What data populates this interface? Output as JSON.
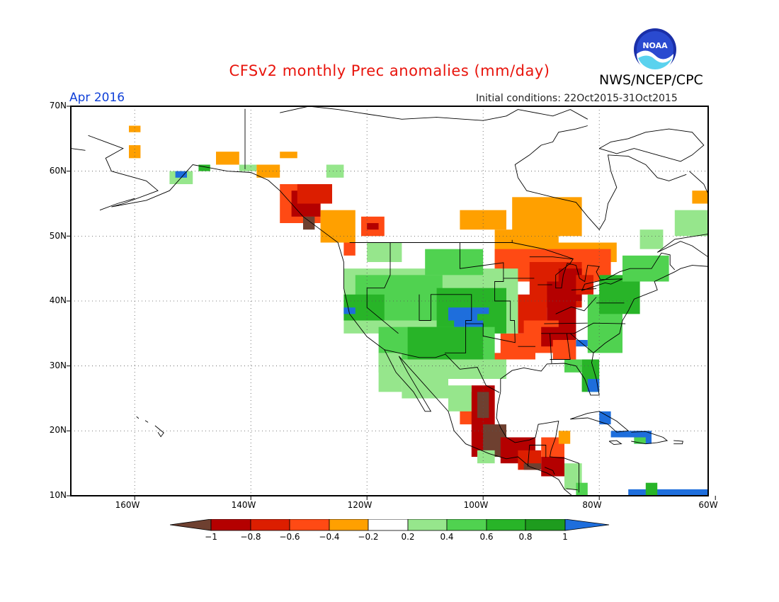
{
  "header": {
    "title": "CFSv2 monthly Prec anomalies (mm/day)",
    "agency": "NWS/NCEP/CPC",
    "logo_text": "NOAA",
    "month": "Apr 2016",
    "initial_conditions": "Initial conditions: 22Oct2015-31Oct2015"
  },
  "map": {
    "lat_labels": [
      "70N",
      "60N",
      "50N",
      "40N",
      "30N",
      "20N",
      "10N"
    ],
    "lon_labels": [
      "160W",
      "140W",
      "120W",
      "100W",
      "80W",
      "60W"
    ]
  },
  "colorbar": {
    "labels": [
      "−1",
      "−0.8",
      "−0.6",
      "−0.4",
      "−0.2",
      "0.2",
      "0.4",
      "0.6",
      "0.8",
      "1"
    ],
    "colors": {
      "lt_-1": "#6e4030",
      "-1_-0.8": "#b40000",
      "-0.8_-0.6": "#dc1e00",
      "-0.6_-0.4": "#ff4a14",
      "-0.4_-0.2": "#ffa000",
      "-0.2_0.2": "#ffffff",
      "0.2_0.4": "#96e68c",
      "0.4_0.6": "#50d250",
      "0.6_0.8": "#28b428",
      "0.8_1": "#1e9c1e",
      "gt_1": "#1e6edc"
    }
  }
}
